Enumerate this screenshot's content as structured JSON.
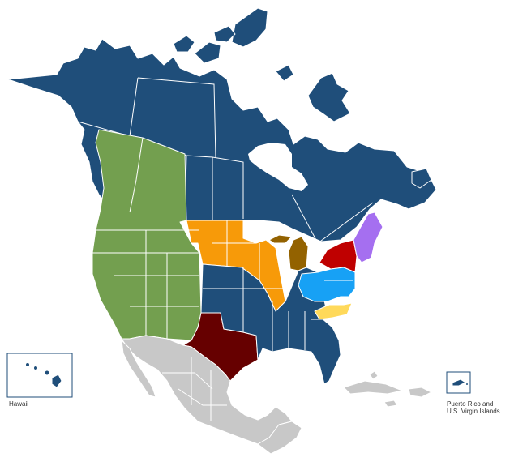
{
  "colors": {
    "canada_default": "#1f4e7a",
    "us_default": "#1f4e7a",
    "west": "#739f4f",
    "midwest": "#f79a09",
    "great_lakes": "#936200",
    "northeast": "#bf0000",
    "new_england": "#a56ff0",
    "mid_atlantic": "#17a1f5",
    "south_east": "#ffd95a",
    "texas": "#660000",
    "other": "#c8c8c8",
    "water": "#ffffff"
  },
  "insets": {
    "hawaii": {
      "label": "Hawaii"
    },
    "puerto_rico": {
      "label_line1": "Puerto Rico and",
      "label_line2": "U.S. Virgin Islands"
    }
  }
}
